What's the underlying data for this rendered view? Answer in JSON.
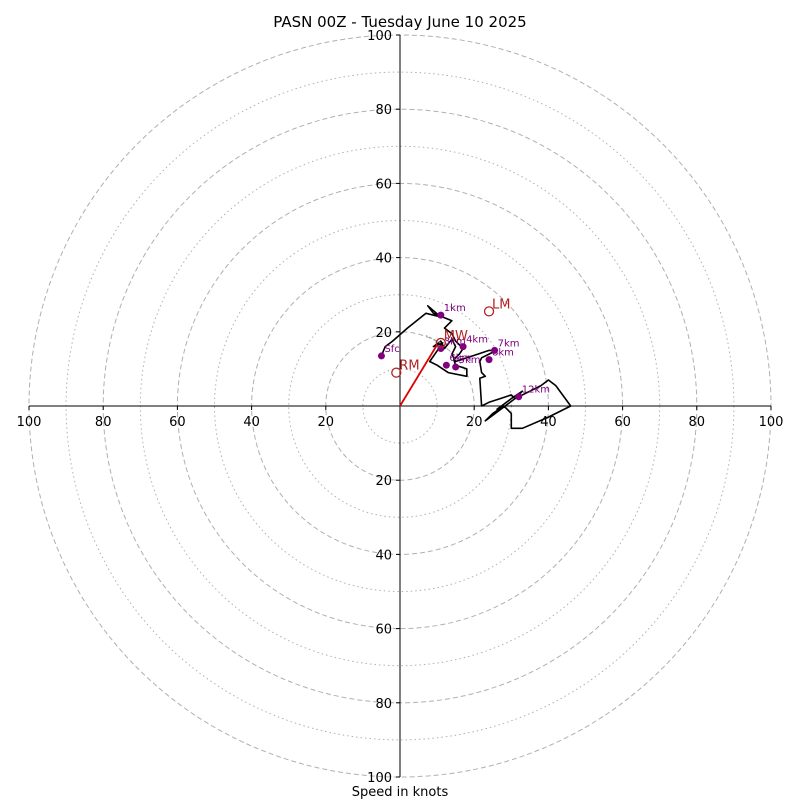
{
  "chart_data": {
    "type": "hodograph",
    "title": "PASN 00Z - Tuesday June 10 2025",
    "xlabel": "Speed in knots",
    "range": [
      -100,
      100
    ],
    "ring_major": [
      20,
      40,
      60,
      80,
      100
    ],
    "ring_minor": [
      10,
      30,
      50,
      70,
      90
    ],
    "ticks": {
      "left": [
        "100",
        "80",
        "60",
        "40",
        "20"
      ],
      "right": [
        "20",
        "40",
        "60",
        "80",
        "100"
      ],
      "top": [
        "20",
        "40",
        "60",
        "80",
        "100"
      ],
      "bottom": [
        "20",
        "40",
        "60",
        "80",
        "100"
      ]
    },
    "wind_trace": [
      [
        -5,
        13.5
      ],
      [
        -4,
        16
      ],
      [
        -2,
        17.5
      ],
      [
        2,
        21
      ],
      [
        7,
        25
      ],
      [
        11,
        24
      ],
      [
        7.5,
        27
      ],
      [
        9,
        25
      ],
      [
        14,
        23
      ],
      [
        12,
        21
      ],
      [
        14,
        19.5
      ],
      [
        15,
        17.5
      ],
      [
        17,
        15.5
      ],
      [
        16,
        14
      ],
      [
        14.5,
        12.5
      ],
      [
        15,
        11
      ],
      [
        18,
        10
      ],
      [
        18,
        8
      ],
      [
        13,
        9
      ],
      [
        10,
        11
      ],
      [
        8,
        12
      ],
      [
        11.5,
        17
      ],
      [
        9,
        16
      ],
      [
        11,
        17.5
      ],
      [
        12,
        15.5
      ],
      [
        14,
        18
      ],
      [
        15,
        16
      ],
      [
        14,
        14
      ],
      [
        15,
        12
      ],
      [
        18,
        13
      ],
      [
        21,
        14
      ],
      [
        24,
        15
      ],
      [
        26,
        15
      ],
      [
        24,
        14
      ],
      [
        22,
        13
      ],
      [
        21.5,
        12
      ],
      [
        22,
        9
      ],
      [
        23,
        8
      ],
      [
        21.5,
        7.5
      ],
      [
        22,
        0
      ],
      [
        24,
        1
      ],
      [
        27,
        2
      ],
      [
        30,
        3
      ],
      [
        31,
        2
      ],
      [
        35,
        4
      ],
      [
        38,
        5.5
      ],
      [
        40,
        7
      ],
      [
        42,
        5.5
      ],
      [
        46,
        0
      ],
      [
        40,
        -3
      ],
      [
        33,
        -6
      ],
      [
        30,
        -6
      ],
      [
        30,
        -2
      ],
      [
        28,
        0
      ],
      [
        25,
        -2
      ],
      [
        23,
        -4
      ],
      [
        27,
        -1
      ],
      [
        31,
        2
      ],
      [
        33,
        4
      ],
      [
        30,
        2
      ],
      [
        26,
        -1
      ]
    ],
    "height_markers": [
      {
        "label": "Sfc",
        "u": -5,
        "v": 13.5
      },
      {
        "label": "1km",
        "u": 11,
        "v": 24.5
      },
      {
        "label": "3km",
        "u": 11,
        "v": 15.5
      },
      {
        "label": "4km",
        "u": 17,
        "v": 16
      },
      {
        "label": "5km",
        "u": 15,
        "v": 10.5
      },
      {
        "label": "6km",
        "u": 12.5,
        "v": 11
      },
      {
        "label": "7km",
        "u": 25.5,
        "v": 15
      },
      {
        "label": "8km",
        "u": 24,
        "v": 12.5
      },
      {
        "label": "12km",
        "u": 32,
        "v": 2.5
      }
    ],
    "motion_markers": [
      {
        "label": "RM",
        "u": -1,
        "v": 9
      },
      {
        "label": "LM",
        "u": 24,
        "v": 25.5
      },
      {
        "label": "MW",
        "u": 11,
        "v": 17
      }
    ],
    "shear_vector": {
      "from": [
        0,
        0
      ],
      "to": [
        10,
        16.5
      ]
    },
    "mean_wind_dashed": {
      "from": [
        11,
        17
      ],
      "to": [
        7,
        19
      ]
    },
    "colors": {
      "trace": "#000000",
      "height_marker": "#800080",
      "motion_marker": "#b22222",
      "shear_vector": "#dd0000",
      "grid": "#b0b0b0",
      "axes": "#000000"
    }
  }
}
